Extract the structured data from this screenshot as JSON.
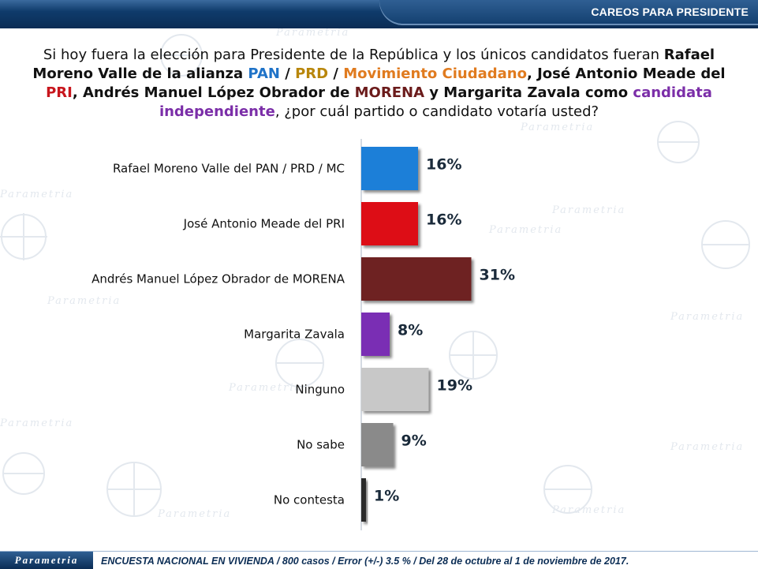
{
  "header": {
    "title": "CAREOS PARA PRESIDENTE"
  },
  "question": {
    "p1": "Si hoy fuera la elección para Presidente de la República y los únicos candidatos fueran ",
    "p2": "Rafael Moreno Valle de la alianza ",
    "pan": "PAN",
    "sep1": " / ",
    "prd": "PRD",
    "sep2": " / ",
    "mc": "Movimiento Ciudadano",
    "p3": ", José Antonio Meade del ",
    "pri": "PRI",
    "p4": ", Andrés Manuel López Obrador de ",
    "morena": "MORENA",
    "p5": " y Margarita Zavala como ",
    "ind": "candidata independiente",
    "p6": ", ¿por cuál partido o candidato votaría usted?"
  },
  "watermark": {
    "text": "Parametria"
  },
  "chart_data": {
    "type": "bar",
    "orientation": "horizontal",
    "categories": [
      "Rafael Moreno Valle del PAN / PRD / MC",
      "José Antonio Meade del PRI",
      "Andrés Manuel López Obrador de MORENA",
      "Margarita Zavala",
      "Ninguno",
      "No sabe",
      "No contesta"
    ],
    "values": [
      16,
      16,
      31,
      8,
      19,
      9,
      1
    ],
    "value_labels": [
      "16%",
      "16%",
      "31%",
      "8%",
      "19%",
      "9%",
      "1%"
    ],
    "colors": [
      "#1f7fd8",
      "#dd0c12",
      "#6e2424",
      "#7a2db4",
      "#c8c8c8",
      "#8a8a8a",
      "#2b2b2b"
    ],
    "xlim": [
      0,
      35
    ],
    "grid": false,
    "legend": "none"
  },
  "footer": {
    "logo": "Parametria",
    "note": "ENCUESTA NACIONAL EN VIVIENDA / 800 casos / Error (+/-) 3.5 % / Del 28 de octubre al 1 de noviembre de 2017."
  }
}
